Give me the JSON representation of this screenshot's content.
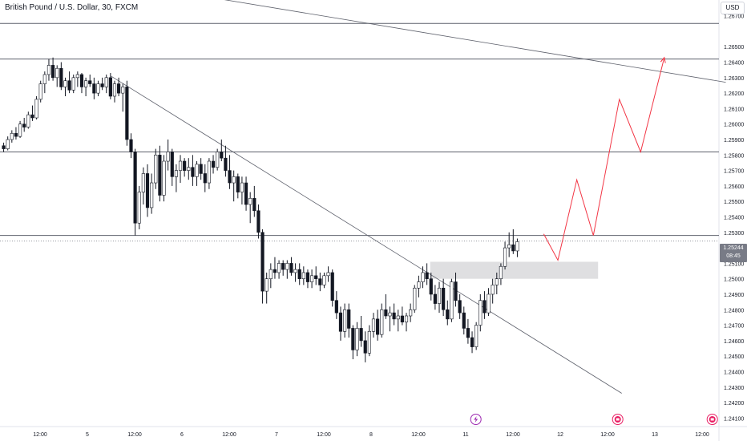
{
  "header": {
    "title": "British Pound / U.S. Dollar, 30, FXCM",
    "currency": "USD"
  },
  "colors": {
    "candle": "#131722",
    "line": "#5d606b",
    "projection": "#f23645",
    "zone": "#d9d9dc",
    "axis_text": "#131722",
    "badge": "#787b86"
  },
  "badge": {
    "price": "1.25244",
    "countdown": "08:45"
  },
  "events": [
    {
      "icon": "lightning-bolt-icon",
      "color": "#9c27b0",
      "x_label_index": 9.3
    },
    {
      "icon": "calendar-flag-icon",
      "color": "#e91e63",
      "x_label_index": 12.3
    },
    {
      "icon": "calendar-flag-icon",
      "color": "#e91e63",
      "x_label_index": 14.3
    }
  ],
  "chart_data": {
    "type": "candlestick",
    "title": "British Pound / U.S. Dollar, 30, FXCM",
    "ylabel": "USD",
    "ylim": [
      1.241,
      1.268
    ],
    "y_ticks": [
      "1.26700",
      "1.26500",
      "1.26400",
      "1.26300",
      "1.26200",
      "1.26100",
      "1.26000",
      "1.25900",
      "1.25800",
      "1.25700",
      "1.25600",
      "1.25500",
      "1.25400",
      "1.25300",
      "1.25100",
      "1.25000",
      "1.24900",
      "1.24800",
      "1.24700",
      "1.24600",
      "1.24500",
      "1.24400",
      "1.24300",
      "1.24200",
      "1.24100"
    ],
    "x_ticks": [
      "12:00",
      "5",
      "12:00",
      "6",
      "12:00",
      "7",
      "12:00",
      "8",
      "12:00",
      "11",
      "12:00",
      "12",
      "12:00",
      "13",
      "12:00"
    ],
    "horizontal_levels": [
      1.2665,
      1.2642,
      1.2582,
      1.2528
    ],
    "trendlines": [
      {
        "from": [
          0.0,
          1.27
        ],
        "to": [
          14.5,
          1.2627
        ]
      },
      {
        "from": [
          1.5,
          1.2631
        ],
        "to": [
          12.3,
          1.2426
        ]
      }
    ],
    "supply_demand_zone": {
      "x_start": 8.25,
      "x_end": 11.8,
      "y_low": 1.25,
      "y_high": 1.2511
    },
    "current_price": 1.25244,
    "projection_path": [
      [
        10.65,
        1.2529
      ],
      [
        10.95,
        1.2512
      ],
      [
        11.35,
        1.2564
      ],
      [
        11.7,
        1.2528
      ],
      [
        12.25,
        1.2616
      ],
      [
        12.7,
        1.2582
      ],
      [
        13.2,
        1.2643
      ]
    ],
    "candles": [
      [
        1.2586,
        1.2588,
        1.2582,
        1.2584
      ],
      [
        1.2584,
        1.2592,
        1.2583,
        1.259
      ],
      [
        1.259,
        1.2596,
        1.2588,
        1.2594
      ],
      [
        1.2594,
        1.2598,
        1.259,
        1.2592
      ],
      [
        1.2592,
        1.2602,
        1.2591,
        1.26
      ],
      [
        1.26,
        1.2604,
        1.2595,
        1.2598
      ],
      [
        1.2598,
        1.2608,
        1.2597,
        1.2606
      ],
      [
        1.2606,
        1.2612,
        1.2602,
        1.2604
      ],
      [
        1.2604,
        1.2618,
        1.2603,
        1.2616
      ],
      [
        1.2616,
        1.2628,
        1.2614,
        1.2626
      ],
      [
        1.2626,
        1.2634,
        1.262,
        1.2632
      ],
      [
        1.2632,
        1.2642,
        1.2628,
        1.2638
      ],
      [
        1.2638,
        1.2643,
        1.2628,
        1.263
      ],
      [
        1.263,
        1.2638,
        1.2624,
        1.2636
      ],
      [
        1.2636,
        1.264,
        1.2622,
        1.2624
      ],
      [
        1.2624,
        1.263,
        1.2618,
        1.2628
      ],
      [
        1.2628,
        1.2634,
        1.262,
        1.2622
      ],
      [
        1.2622,
        1.2632,
        1.262,
        1.263
      ],
      [
        1.263,
        1.2634,
        1.2624,
        1.2632
      ],
      [
        1.2632,
        1.2633,
        1.262,
        1.2624
      ],
      [
        1.2624,
        1.263,
        1.2618,
        1.2628
      ],
      [
        1.2628,
        1.2632,
        1.2624,
        1.2626
      ],
      [
        1.2626,
        1.263,
        1.2616,
        1.262
      ],
      [
        1.262,
        1.2628,
        1.2618,
        1.2626
      ],
      [
        1.2626,
        1.263,
        1.2622,
        1.2624
      ],
      [
        1.2624,
        1.2632,
        1.262,
        1.263
      ],
      [
        1.263,
        1.2633,
        1.2616,
        1.2618
      ],
      [
        1.2618,
        1.2628,
        1.2614,
        1.2626
      ],
      [
        1.2626,
        1.263,
        1.2618,
        1.262
      ],
      [
        1.262,
        1.2626,
        1.2608,
        1.2624
      ],
      [
        1.2624,
        1.2628,
        1.2586,
        1.259
      ],
      [
        1.259,
        1.2594,
        1.2578,
        1.2582
      ],
      [
        1.2582,
        1.2584,
        1.2528,
        1.2536
      ],
      [
        1.2536,
        1.256,
        1.2532,
        1.2556
      ],
      [
        1.2556,
        1.2572,
        1.2548,
        1.2568
      ],
      [
        1.2568,
        1.2574,
        1.254,
        1.2546
      ],
      [
        1.2546,
        1.2568,
        1.2542,
        1.2562
      ],
      [
        1.2562,
        1.2584,
        1.2558,
        1.258
      ],
      [
        1.258,
        1.2586,
        1.255,
        1.2554
      ],
      [
        1.2554,
        1.258,
        1.255,
        1.2576
      ],
      [
        1.2576,
        1.259,
        1.257,
        1.2582
      ],
      [
        1.2582,
        1.2584,
        1.256,
        1.2566
      ],
      [
        1.2566,
        1.2574,
        1.2556,
        1.257
      ],
      [
        1.257,
        1.258,
        1.2562,
        1.2576
      ],
      [
        1.2576,
        1.2578,
        1.2566,
        1.257
      ],
      [
        1.257,
        1.2578,
        1.2564,
        1.2572
      ],
      [
        1.2572,
        1.258,
        1.256,
        1.2566
      ],
      [
        1.2566,
        1.2576,
        1.256,
        1.2574
      ],
      [
        1.2574,
        1.2578,
        1.2564,
        1.2568
      ],
      [
        1.2568,
        1.2574,
        1.2556,
        1.2562
      ],
      [
        1.2562,
        1.2578,
        1.2558,
        1.2576
      ],
      [
        1.2576,
        1.258,
        1.2568,
        1.2572
      ],
      [
        1.2572,
        1.2584,
        1.257,
        1.2582
      ],
      [
        1.2582,
        1.259,
        1.2576,
        1.2578
      ],
      [
        1.2578,
        1.2586,
        1.2566,
        1.257
      ],
      [
        1.257,
        1.258,
        1.2558,
        1.2562
      ],
      [
        1.2562,
        1.257,
        1.255,
        1.2566
      ],
      [
        1.2566,
        1.2568,
        1.2552,
        1.2556
      ],
      [
        1.2556,
        1.2566,
        1.2548,
        1.2562
      ],
      [
        1.2562,
        1.2566,
        1.2544,
        1.2548
      ],
      [
        1.2548,
        1.2556,
        1.2536,
        1.2552
      ],
      [
        1.2552,
        1.256,
        1.254,
        1.2544
      ],
      [
        1.2544,
        1.2548,
        1.2526,
        1.253
      ],
      [
        1.253,
        1.2532,
        1.2484,
        1.2492
      ],
      [
        1.2492,
        1.2504,
        1.2484,
        1.25
      ],
      [
        1.25,
        1.251,
        1.2494,
        1.2506
      ],
      [
        1.2506,
        1.2514,
        1.25,
        1.2504
      ],
      [
        1.2504,
        1.2512,
        1.25,
        1.251
      ],
      [
        1.251,
        1.2512,
        1.2502,
        1.2506
      ],
      [
        1.2506,
        1.2512,
        1.25,
        1.251
      ],
      [
        1.251,
        1.2514,
        1.2502,
        1.2504
      ],
      [
        1.2504,
        1.251,
        1.2498,
        1.2506
      ],
      [
        1.2506,
        1.251,
        1.2496,
        1.25
      ],
      [
        1.25,
        1.2508,
        1.2496,
        1.2504
      ],
      [
        1.2504,
        1.2506,
        1.2494,
        1.2498
      ],
      [
        1.2498,
        1.2506,
        1.2494,
        1.2502
      ],
      [
        1.2502,
        1.2508,
        1.2496,
        1.25
      ],
      [
        1.25,
        1.2504,
        1.2492,
        1.2496
      ],
      [
        1.2496,
        1.2504,
        1.2494,
        1.2502
      ],
      [
        1.2502,
        1.2508,
        1.2498,
        1.2504
      ],
      [
        1.2504,
        1.2506,
        1.2482,
        1.2486
      ],
      [
        1.2486,
        1.2492,
        1.2474,
        1.2478
      ],
      [
        1.2478,
        1.2482,
        1.246,
        1.2466
      ],
      [
        1.2466,
        1.2484,
        1.2462,
        1.248
      ],
      [
        1.248,
        1.2484,
        1.2462,
        1.2468
      ],
      [
        1.2468,
        1.247,
        1.2448,
        1.2454
      ],
      [
        1.2454,
        1.2472,
        1.245,
        1.2468
      ],
      [
        1.2468,
        1.2476,
        1.2456,
        1.246
      ],
      [
        1.246,
        1.2466,
        1.2446,
        1.2452
      ],
      [
        1.2452,
        1.247,
        1.245,
        1.2466
      ],
      [
        1.2466,
        1.2478,
        1.2462,
        1.2474
      ],
      [
        1.2474,
        1.248,
        1.246,
        1.2464
      ],
      [
        1.2464,
        1.2484,
        1.2462,
        1.248
      ],
      [
        1.248,
        1.249,
        1.2474,
        1.2476
      ],
      [
        1.2476,
        1.2482,
        1.2466,
        1.2478
      ],
      [
        1.2478,
        1.2484,
        1.247,
        1.2474
      ],
      [
        1.2474,
        1.248,
        1.2466,
        1.2476
      ],
      [
        1.2476,
        1.2482,
        1.247,
        1.2472
      ],
      [
        1.2472,
        1.2478,
        1.2466,
        1.2476
      ],
      [
        1.2476,
        1.2484,
        1.2472,
        1.248
      ],
      [
        1.248,
        1.2496,
        1.2478,
        1.2494
      ],
      [
        1.2494,
        1.2502,
        1.2488,
        1.2498
      ],
      [
        1.2498,
        1.2508,
        1.2494,
        1.2504
      ],
      [
        1.2504,
        1.251,
        1.2496,
        1.25
      ],
      [
        1.25,
        1.2504,
        1.2486,
        1.249
      ],
      [
        1.249,
        1.2496,
        1.248,
        1.2484
      ],
      [
        1.2484,
        1.2498,
        1.2478,
        1.2494
      ],
      [
        1.2494,
        1.25,
        1.2476,
        1.248
      ],
      [
        1.248,
        1.2486,
        1.247,
        1.2474
      ],
      [
        1.2474,
        1.25,
        1.2472,
        1.2498
      ],
      [
        1.2498,
        1.2504,
        1.2482,
        1.2486
      ],
      [
        1.2486,
        1.249,
        1.2474,
        1.2478
      ],
      [
        1.2478,
        1.2482,
        1.2464,
        1.2468
      ],
      [
        1.2468,
        1.2474,
        1.2458,
        1.2462
      ],
      [
        1.2462,
        1.2466,
        1.2452,
        1.2456
      ],
      [
        1.2456,
        1.2472,
        1.2454,
        1.247
      ],
      [
        1.247,
        1.249,
        1.2466,
        1.2486
      ],
      [
        1.2486,
        1.2492,
        1.2474,
        1.2478
      ],
      [
        1.2478,
        1.2494,
        1.2476,
        1.249
      ],
      [
        1.249,
        1.25,
        1.2484,
        1.2496
      ],
      [
        1.2496,
        1.2504,
        1.249,
        1.25
      ],
      [
        1.25,
        1.251,
        1.2496,
        1.2508
      ],
      [
        1.2508,
        1.2524,
        1.2506,
        1.252
      ],
      [
        1.252,
        1.253,
        1.2514,
        1.2522
      ],
      [
        1.2522,
        1.2532,
        1.2516,
        1.2518
      ],
      [
        1.2518,
        1.2526,
        1.2514,
        1.2524
      ]
    ]
  }
}
